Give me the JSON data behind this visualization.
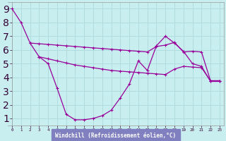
{
  "xlabel": "Windchill (Refroidissement éolien,°C)",
  "bg_color": "#c8eef0",
  "grid_color": "#b0dce0",
  "line_color": "#990099",
  "xlim": [
    -0.5,
    23.5
  ],
  "ylim": [
    0.5,
    9.5
  ],
  "xtick_vals": [
    0,
    1,
    2,
    3,
    4,
    5,
    6,
    7,
    8,
    9,
    10,
    11,
    12,
    13,
    14,
    15,
    16,
    17,
    18,
    19,
    20,
    21,
    22,
    23
  ],
  "ytick_vals": [
    1,
    2,
    3,
    4,
    5,
    6,
    7,
    8,
    9
  ],
  "line1_x": [
    0,
    1,
    2,
    3,
    4,
    5,
    6,
    7,
    8,
    9,
    10,
    11,
    12,
    13,
    14,
    15,
    16,
    17,
    18,
    19,
    20,
    21,
    22,
    23
  ],
  "line1_y": [
    9.0,
    8.0,
    6.5,
    5.5,
    5.0,
    3.2,
    1.3,
    0.9,
    0.9,
    1.0,
    1.2,
    1.6,
    2.5,
    3.5,
    5.2,
    4.5,
    6.3,
    7.0,
    6.5,
    5.9,
    5.0,
    4.8,
    3.7,
    3.7
  ],
  "line2_x": [
    2,
    3,
    4,
    5,
    6,
    7,
    8,
    9,
    10,
    11,
    12,
    13,
    14,
    15,
    16,
    17,
    18,
    19,
    20,
    21,
    22,
    23
  ],
  "line2_y": [
    6.5,
    6.45,
    6.4,
    6.35,
    6.3,
    6.25,
    6.2,
    6.15,
    6.1,
    6.05,
    6.0,
    5.95,
    5.9,
    5.85,
    6.25,
    6.35,
    6.55,
    5.85,
    5.9,
    5.85,
    3.75,
    3.75
  ],
  "line3_x": [
    3,
    4,
    5,
    6,
    7,
    8,
    9,
    10,
    11,
    12,
    13,
    14,
    15,
    16,
    17,
    18,
    19,
    20,
    21,
    22,
    23
  ],
  "line3_y": [
    5.5,
    5.35,
    5.2,
    5.05,
    4.9,
    4.8,
    4.7,
    4.6,
    4.5,
    4.45,
    4.4,
    4.35,
    4.3,
    4.25,
    4.2,
    4.6,
    4.8,
    4.75,
    4.7,
    3.75,
    3.75
  ],
  "xlabel_bg": "#8080c0",
  "xlabel_fg": "#ffffff"
}
